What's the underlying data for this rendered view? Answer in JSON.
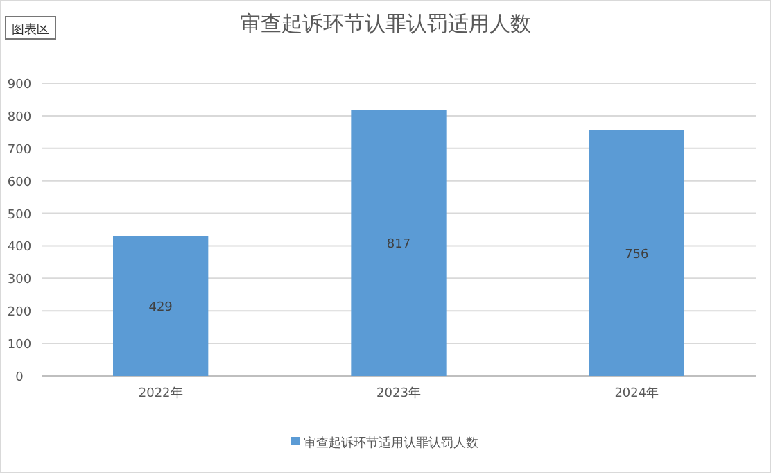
{
  "chart_data": {
    "type": "bar",
    "title": "审查起诉环节认罪认罚适用人数",
    "categories": [
      "2022年",
      "2023年",
      "2024年"
    ],
    "series": [
      {
        "name": "审查起诉环节适用认罪认罚人数",
        "color": "#5b9bd5",
        "values": [
          429,
          817,
          756
        ]
      }
    ],
    "ylim": [
      0,
      900
    ],
    "yticks": [
      0,
      100,
      200,
      300,
      400,
      500,
      600,
      700,
      800,
      900
    ],
    "grid": "y",
    "legend": "bottom",
    "data_labels": true,
    "annotations": [
      "图表区"
    ]
  }
}
